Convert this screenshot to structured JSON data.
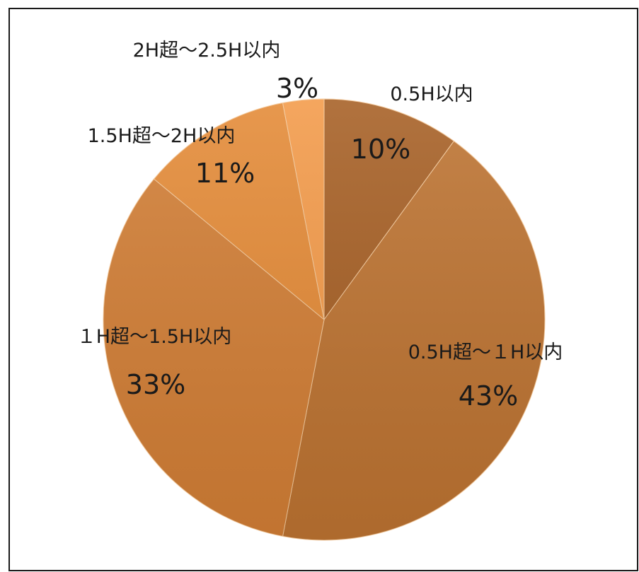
{
  "chart_data": {
    "type": "pie",
    "title": "",
    "slices": [
      {
        "label": "0.5H以内",
        "value": 10,
        "value_label": "10%",
        "color": "#a65f24"
      },
      {
        "label": "0.5H超～１H以内",
        "value": 43,
        "value_label": "43%",
        "color": "#bd7331"
      },
      {
        "label": "１H超～1.5H以内",
        "value": 33,
        "value_label": "33%",
        "color": "#d27e35"
      },
      {
        "label": "1.5H超～2H以内",
        "value": 11,
        "value_label": "11%",
        "color": "#e48a36"
      },
      {
        "label": "2H超～2.5H以内",
        "value": 3,
        "value_label": "3%",
        "color": "#f39a49"
      }
    ],
    "start_angle_deg": 0,
    "direction": "clockwise",
    "legend": "none",
    "data_labels": "category-and-percent"
  }
}
